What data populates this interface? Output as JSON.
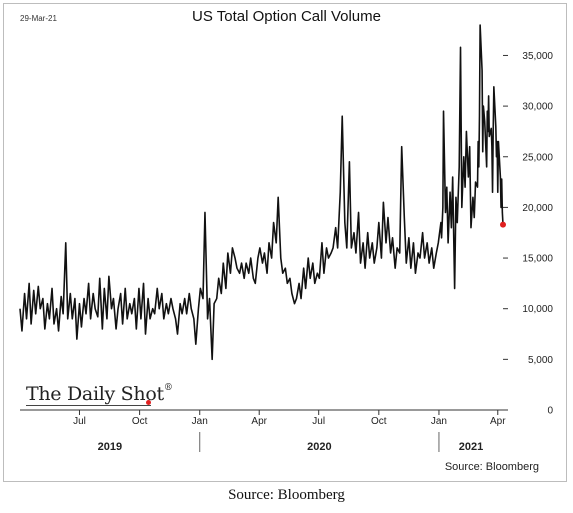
{
  "date_stamp": "29-Mar-21",
  "logo_text": "The Daily Shot",
  "logo_mark": "®",
  "source_inner": "Source: Bloomberg",
  "caption": "Source: Bloomberg",
  "colors": {
    "line": "#111111",
    "last_point": "#e02020",
    "axis": "#333333"
  },
  "chart_data": {
    "type": "line",
    "title": "US Total Option Call Volume",
    "xlabel": "",
    "ylabel": "",
    "ylim": [
      0,
      38500
    ],
    "xlim": [
      "2019-04-01",
      "2021-04-09"
    ],
    "y_ticks": [
      0,
      5000,
      10000,
      15000,
      20000,
      25000,
      30000,
      35000
    ],
    "y_tick_labels": [
      "0",
      "5,000",
      "10,000",
      "15,000",
      "20,000",
      "25,000",
      "30,000",
      "35,000"
    ],
    "x_ticks": [
      {
        "date": "2019-07-01",
        "label": "Jul"
      },
      {
        "date": "2019-10-01",
        "label": "Oct"
      },
      {
        "date": "2020-01-01",
        "label": "Jan"
      },
      {
        "date": "2020-04-01",
        "label": "Apr"
      },
      {
        "date": "2020-07-01",
        "label": "Jul"
      },
      {
        "date": "2020-10-01",
        "label": "Oct"
      },
      {
        "date": "2021-01-01",
        "label": "Jan"
      },
      {
        "date": "2021-04-01",
        "label": "Apr"
      }
    ],
    "year_labels": [
      {
        "label": "2019",
        "from": "2019-04-01",
        "to": "2020-01-01"
      },
      {
        "label": "2020",
        "from": "2020-01-01",
        "to": "2021-01-01"
      },
      {
        "label": "2021",
        "from": "2021-01-01",
        "to": "2021-04-09"
      }
    ],
    "grid": false,
    "legend": "none",
    "series": [
      {
        "points": [
          [
            "2019-04-01",
            10000
          ],
          [
            "2019-04-04",
            7800
          ],
          [
            "2019-04-08",
            11500
          ],
          [
            "2019-04-11",
            9000
          ],
          [
            "2019-04-15",
            12500
          ],
          [
            "2019-04-18",
            8500
          ],
          [
            "2019-04-22",
            11800
          ],
          [
            "2019-04-25",
            9500
          ],
          [
            "2019-04-29",
            12200
          ],
          [
            "2019-05-02",
            10000
          ],
          [
            "2019-05-06",
            11000
          ],
          [
            "2019-05-09",
            8000
          ],
          [
            "2019-05-13",
            10500
          ],
          [
            "2019-05-16",
            9000
          ],
          [
            "2019-05-20",
            12000
          ],
          [
            "2019-05-23",
            8500
          ],
          [
            "2019-05-27",
            10000
          ],
          [
            "2019-05-30",
            7800
          ],
          [
            "2019-06-03",
            11200
          ],
          [
            "2019-06-06",
            9500
          ],
          [
            "2019-06-10",
            16500
          ],
          [
            "2019-06-13",
            9000
          ],
          [
            "2019-06-17",
            11500
          ],
          [
            "2019-06-20",
            9000
          ],
          [
            "2019-06-24",
            11000
          ],
          [
            "2019-06-27",
            7000
          ],
          [
            "2019-07-01",
            10500
          ],
          [
            "2019-07-04",
            8200
          ],
          [
            "2019-07-08",
            11000
          ],
          [
            "2019-07-11",
            9500
          ],
          [
            "2019-07-15",
            12500
          ],
          [
            "2019-07-18",
            9000
          ],
          [
            "2019-07-22",
            11500
          ],
          [
            "2019-07-25",
            10000
          ],
          [
            "2019-07-29",
            9200
          ],
          [
            "2019-08-01",
            13000
          ],
          [
            "2019-08-05",
            8000
          ],
          [
            "2019-08-08",
            12000
          ],
          [
            "2019-08-12",
            9000
          ],
          [
            "2019-08-15",
            13200
          ],
          [
            "2019-08-19",
            10000
          ],
          [
            "2019-08-22",
            11000
          ],
          [
            "2019-08-26",
            8000
          ],
          [
            "2019-08-29",
            10000
          ],
          [
            "2019-09-02",
            11500
          ],
          [
            "2019-09-05",
            8500
          ],
          [
            "2019-09-09",
            12000
          ],
          [
            "2019-09-12",
            9000
          ],
          [
            "2019-09-16",
            10500
          ],
          [
            "2019-09-19",
            9500
          ],
          [
            "2019-09-23",
            11000
          ],
          [
            "2019-09-26",
            8000
          ],
          [
            "2019-09-30",
            12000
          ],
          [
            "2019-10-03",
            9000
          ],
          [
            "2019-10-07",
            12500
          ],
          [
            "2019-10-10",
            7500
          ],
          [
            "2019-10-14",
            11000
          ],
          [
            "2019-10-17",
            9000
          ],
          [
            "2019-10-21",
            10000
          ],
          [
            "2019-10-24",
            9500
          ],
          [
            "2019-10-28",
            12000
          ],
          [
            "2019-10-31",
            10000
          ],
          [
            "2019-11-04",
            11500
          ],
          [
            "2019-11-07",
            9000
          ],
          [
            "2019-11-11",
            10500
          ],
          [
            "2019-11-14",
            9500
          ],
          [
            "2019-11-18",
            11000
          ],
          [
            "2019-11-21",
            10000
          ],
          [
            "2019-11-25",
            9000
          ],
          [
            "2019-11-28",
            7500
          ],
          [
            "2019-12-02",
            10500
          ],
          [
            "2019-12-05",
            9500
          ],
          [
            "2019-12-09",
            11000
          ],
          [
            "2019-12-12",
            9500
          ],
          [
            "2019-12-16",
            11500
          ],
          [
            "2019-12-19",
            10000
          ],
          [
            "2019-12-23",
            9000
          ],
          [
            "2019-12-26",
            6500
          ],
          [
            "2019-12-30",
            10000
          ],
          [
            "2020-01-02",
            12000
          ],
          [
            "2020-01-06",
            11000
          ],
          [
            "2020-01-09",
            19500
          ],
          [
            "2020-01-13",
            9000
          ],
          [
            "2020-01-16",
            11000
          ],
          [
            "2020-01-20",
            5000
          ],
          [
            "2020-01-23",
            10500
          ],
          [
            "2020-01-27",
            11000
          ],
          [
            "2020-01-30",
            13000
          ],
          [
            "2020-02-03",
            11500
          ],
          [
            "2020-02-06",
            14500
          ],
          [
            "2020-02-10",
            12000
          ],
          [
            "2020-02-13",
            15500
          ],
          [
            "2020-02-17",
            13500
          ],
          [
            "2020-02-20",
            16000
          ],
          [
            "2020-02-24",
            15000
          ],
          [
            "2020-02-27",
            14000
          ],
          [
            "2020-03-02",
            13500
          ],
          [
            "2020-03-05",
            14500
          ],
          [
            "2020-03-09",
            13000
          ],
          [
            "2020-03-12",
            14500
          ],
          [
            "2020-03-16",
            13500
          ],
          [
            "2020-03-19",
            15000
          ],
          [
            "2020-03-23",
            13000
          ],
          [
            "2020-03-26",
            12500
          ],
          [
            "2020-03-30",
            15000
          ],
          [
            "2020-04-02",
            16000
          ],
          [
            "2020-04-06",
            14500
          ],
          [
            "2020-04-09",
            15500
          ],
          [
            "2020-04-13",
            13500
          ],
          [
            "2020-04-16",
            16500
          ],
          [
            "2020-04-20",
            15000
          ],
          [
            "2020-04-23",
            18500
          ],
          [
            "2020-04-27",
            16500
          ],
          [
            "2020-04-30",
            21000
          ],
          [
            "2020-05-04",
            15000
          ],
          [
            "2020-05-07",
            13500
          ],
          [
            "2020-05-11",
            14000
          ],
          [
            "2020-05-14",
            12500
          ],
          [
            "2020-05-18",
            13000
          ],
          [
            "2020-05-21",
            11500
          ],
          [
            "2020-05-25",
            10500
          ],
          [
            "2020-05-28",
            11000
          ],
          [
            "2020-06-01",
            12500
          ],
          [
            "2020-06-04",
            11000
          ],
          [
            "2020-06-08",
            14000
          ],
          [
            "2020-06-11",
            12000
          ],
          [
            "2020-06-15",
            15000
          ],
          [
            "2020-06-18",
            13000
          ],
          [
            "2020-06-22",
            14500
          ],
          [
            "2020-06-25",
            12500
          ],
          [
            "2020-06-29",
            13500
          ],
          [
            "2020-07-02",
            13000
          ],
          [
            "2020-07-06",
            16500
          ],
          [
            "2020-07-09",
            13500
          ],
          [
            "2020-07-13",
            16000
          ],
          [
            "2020-07-16",
            15000
          ],
          [
            "2020-07-20",
            15500
          ],
          [
            "2020-07-23",
            16000
          ],
          [
            "2020-07-27",
            18000
          ],
          [
            "2020-07-30",
            16000
          ],
          [
            "2020-08-03",
            21500
          ],
          [
            "2020-08-06",
            29000
          ],
          [
            "2020-08-10",
            18500
          ],
          [
            "2020-08-13",
            16000
          ],
          [
            "2020-08-17",
            24500
          ],
          [
            "2020-08-20",
            16000
          ],
          [
            "2020-08-24",
            17500
          ],
          [
            "2020-08-27",
            15500
          ],
          [
            "2020-08-31",
            19500
          ],
          [
            "2020-09-03",
            14500
          ],
          [
            "2020-09-07",
            16500
          ],
          [
            "2020-09-10",
            14000
          ],
          [
            "2020-09-14",
            17500
          ],
          [
            "2020-09-17",
            15000
          ],
          [
            "2020-09-21",
            16500
          ],
          [
            "2020-09-24",
            14500
          ],
          [
            "2020-09-28",
            16000
          ],
          [
            "2020-10-01",
            18500
          ],
          [
            "2020-10-05",
            15000
          ],
          [
            "2020-10-08",
            20500
          ],
          [
            "2020-10-12",
            16500
          ],
          [
            "2020-10-15",
            19000
          ],
          [
            "2020-10-19",
            15500
          ],
          [
            "2020-10-22",
            17000
          ],
          [
            "2020-10-26",
            14000
          ],
          [
            "2020-10-29",
            16000
          ],
          [
            "2020-11-02",
            15500
          ],
          [
            "2020-11-05",
            26000
          ],
          [
            "2020-11-09",
            19000
          ],
          [
            "2020-11-12",
            14500
          ],
          [
            "2020-11-16",
            17000
          ],
          [
            "2020-11-19",
            14000
          ],
          [
            "2020-11-23",
            16500
          ],
          [
            "2020-11-26",
            13500
          ],
          [
            "2020-11-30",
            15500
          ],
          [
            "2020-12-03",
            15000
          ],
          [
            "2020-12-07",
            17500
          ],
          [
            "2020-12-10",
            15000
          ],
          [
            "2020-12-14",
            16500
          ],
          [
            "2020-12-17",
            14500
          ],
          [
            "2020-12-21",
            16000
          ],
          [
            "2020-12-24",
            14000
          ],
          [
            "2020-12-28",
            15500
          ],
          [
            "2020-12-31",
            16500
          ],
          [
            "2021-01-04",
            18500
          ],
          [
            "2021-01-05",
            17000
          ],
          [
            "2021-01-07",
            20000
          ],
          [
            "2021-01-08",
            29500
          ],
          [
            "2021-01-11",
            19500
          ],
          [
            "2021-01-13",
            22000
          ],
          [
            "2021-01-15",
            16500
          ],
          [
            "2021-01-18",
            21500
          ],
          [
            "2021-01-20",
            18000
          ],
          [
            "2021-01-22",
            23000
          ],
          [
            "2021-01-25",
            12000
          ],
          [
            "2021-01-27",
            21000
          ],
          [
            "2021-01-29",
            18500
          ],
          [
            "2021-02-01",
            24000
          ],
          [
            "2021-02-03",
            35800
          ],
          [
            "2021-02-05",
            20000
          ],
          [
            "2021-02-08",
            25000
          ],
          [
            "2021-02-10",
            22000
          ],
          [
            "2021-02-12",
            27500
          ],
          [
            "2021-02-15",
            23000
          ],
          [
            "2021-02-17",
            26000
          ],
          [
            "2021-02-19",
            18000
          ],
          [
            "2021-02-22",
            21000
          ],
          [
            "2021-02-24",
            19000
          ],
          [
            "2021-02-26",
            22500
          ],
          [
            "2021-03-01",
            22000
          ],
          [
            "2021-03-02",
            26500
          ],
          [
            "2021-03-03",
            24000
          ],
          [
            "2021-03-04",
            29000
          ],
          [
            "2021-03-05",
            38000
          ],
          [
            "2021-03-08",
            33500
          ],
          [
            "2021-03-09",
            25500
          ],
          [
            "2021-03-10",
            30000
          ],
          [
            "2021-03-12",
            28500
          ],
          [
            "2021-03-15",
            24000
          ],
          [
            "2021-03-16",
            29500
          ],
          [
            "2021-03-17",
            27500
          ],
          [
            "2021-03-18",
            31000
          ],
          [
            "2021-03-19",
            27000
          ],
          [
            "2021-03-22",
            27800
          ],
          [
            "2021-03-23",
            26000
          ],
          [
            "2021-03-24",
            21500
          ],
          [
            "2021-03-25",
            27500
          ],
          [
            "2021-03-26",
            31900
          ],
          [
            "2021-03-29",
            28000
          ],
          [
            "2021-03-30",
            25000
          ],
          [
            "2021-03-31",
            26500
          ],
          [
            "2021-04-01",
            21500
          ],
          [
            "2021-04-02",
            26500
          ],
          [
            "2021-04-05",
            23000
          ],
          [
            "2021-04-06",
            20000
          ],
          [
            "2021-04-07",
            22800
          ],
          [
            "2021-04-08",
            19500
          ],
          [
            "2021-04-09",
            18300
          ]
        ],
        "last_point_marker": true
      }
    ]
  }
}
